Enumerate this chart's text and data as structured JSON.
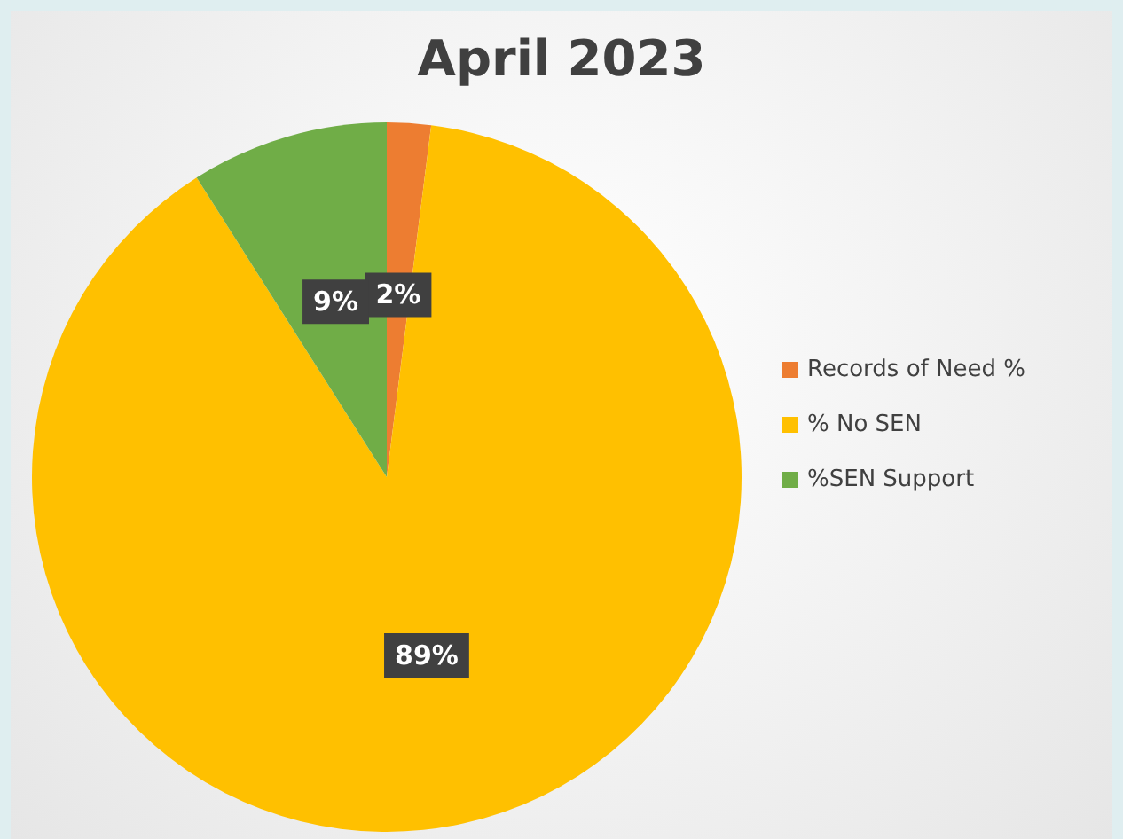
{
  "chart_data": {
    "type": "pie",
    "title": "April 2023",
    "categories": [
      "Records of Need %",
      "% No SEN",
      "%SEN Support"
    ],
    "values": [
      2,
      89,
      9
    ],
    "colors": [
      "#ed7d31",
      "#ffc000",
      "#70ad47"
    ],
    "value_labels": [
      "2%",
      "89%",
      "9%"
    ],
    "legend": "right"
  }
}
